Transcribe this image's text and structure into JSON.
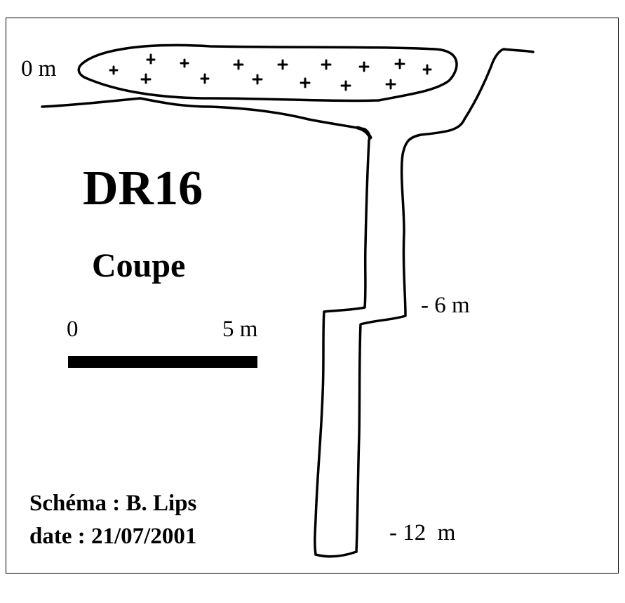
{
  "diagram": {
    "title": "DR16",
    "subtitle": "Coupe",
    "depth_labels": {
      "top": "0 m",
      "middle": "- 6 m",
      "bottom": "- 12  m"
    },
    "scale": {
      "start_label": "0",
      "end_label": "5 m"
    },
    "credits": {
      "author_line": "Schéma : B. Lips",
      "date_line": "date : 21/07/2001"
    },
    "colors": {
      "ink": "#000000",
      "background": "#ffffff"
    }
  }
}
